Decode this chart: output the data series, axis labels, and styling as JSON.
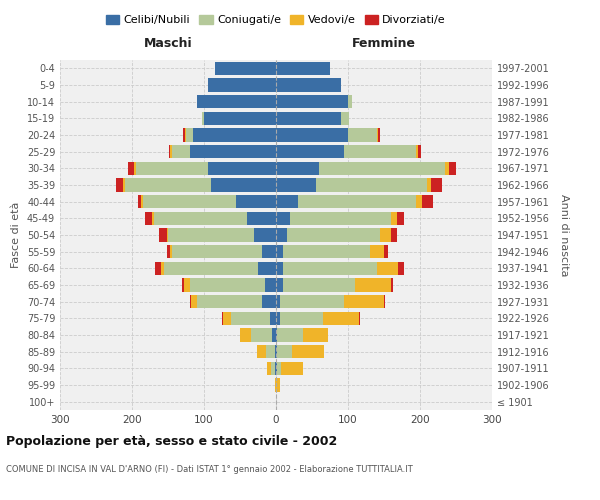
{
  "age_groups": [
    "100+",
    "95-99",
    "90-94",
    "85-89",
    "80-84",
    "75-79",
    "70-74",
    "65-69",
    "60-64",
    "55-59",
    "50-54",
    "45-49",
    "40-44",
    "35-39",
    "30-34",
    "25-29",
    "20-24",
    "15-19",
    "10-14",
    "5-9",
    "0-4"
  ],
  "birth_years": [
    "≤ 1901",
    "1902-1906",
    "1907-1911",
    "1912-1916",
    "1917-1921",
    "1922-1926",
    "1927-1931",
    "1932-1936",
    "1937-1941",
    "1942-1946",
    "1947-1951",
    "1952-1956",
    "1957-1961",
    "1962-1966",
    "1967-1971",
    "1972-1976",
    "1977-1981",
    "1982-1986",
    "1987-1991",
    "1992-1996",
    "1997-2001"
  ],
  "maschi": {
    "celibe": [
      0,
      0,
      2,
      2,
      5,
      8,
      20,
      15,
      25,
      20,
      30,
      40,
      55,
      90,
      95,
      120,
      115,
      100,
      110,
      95,
      85
    ],
    "coniugato": [
      0,
      0,
      5,
      12,
      30,
      55,
      90,
      105,
      130,
      125,
      120,
      130,
      130,
      120,
      100,
      25,
      10,
      3,
      0,
      0,
      0
    ],
    "vedovo": [
      0,
      2,
      5,
      12,
      15,
      10,
      8,
      8,
      5,
      2,
      2,
      2,
      2,
      2,
      2,
      2,
      2,
      0,
      0,
      0,
      0
    ],
    "divorziato": [
      0,
      0,
      0,
      0,
      0,
      2,
      2,
      3,
      8,
      5,
      10,
      10,
      5,
      10,
      8,
      2,
      2,
      0,
      0,
      0,
      0
    ]
  },
  "femmine": {
    "nubile": [
      0,
      0,
      2,
      2,
      2,
      5,
      5,
      10,
      10,
      10,
      15,
      20,
      30,
      55,
      60,
      95,
      100,
      90,
      100,
      90,
      75
    ],
    "coniugata": [
      0,
      0,
      5,
      20,
      35,
      60,
      90,
      100,
      130,
      120,
      130,
      140,
      165,
      155,
      175,
      100,
      40,
      12,
      5,
      0,
      0
    ],
    "vedova": [
      0,
      5,
      30,
      45,
      35,
      50,
      55,
      50,
      30,
      20,
      15,
      8,
      8,
      5,
      5,
      2,
      2,
      0,
      0,
      0,
      0
    ],
    "divorziata": [
      0,
      0,
      0,
      0,
      0,
      2,
      2,
      2,
      8,
      5,
      8,
      10,
      15,
      15,
      10,
      5,
      2,
      0,
      0,
      0,
      0
    ]
  },
  "colors": {
    "celibe": "#3a6ea5",
    "coniugato": "#b5c99a",
    "vedovo": "#f0b429",
    "divorziato": "#cc2222"
  },
  "xlim": 300,
  "title": "Popolazione per età, sesso e stato civile - 2002",
  "subtitle": "COMUNE DI INCISA IN VAL D'ARNO (FI) - Dati ISTAT 1° gennaio 2002 - Elaborazione TUTTITALIA.IT",
  "ylabel_left": "Fasce di età",
  "ylabel_right": "Anni di nascita",
  "xlabel_maschi": "Maschi",
  "xlabel_femmine": "Femmine",
  "legend_labels": [
    "Celibi/Nubili",
    "Coniugati/e",
    "Vedovi/e",
    "Divorziati/e"
  ],
  "bg_color": "#f0f0f0",
  "grid_color": "#cccccc"
}
